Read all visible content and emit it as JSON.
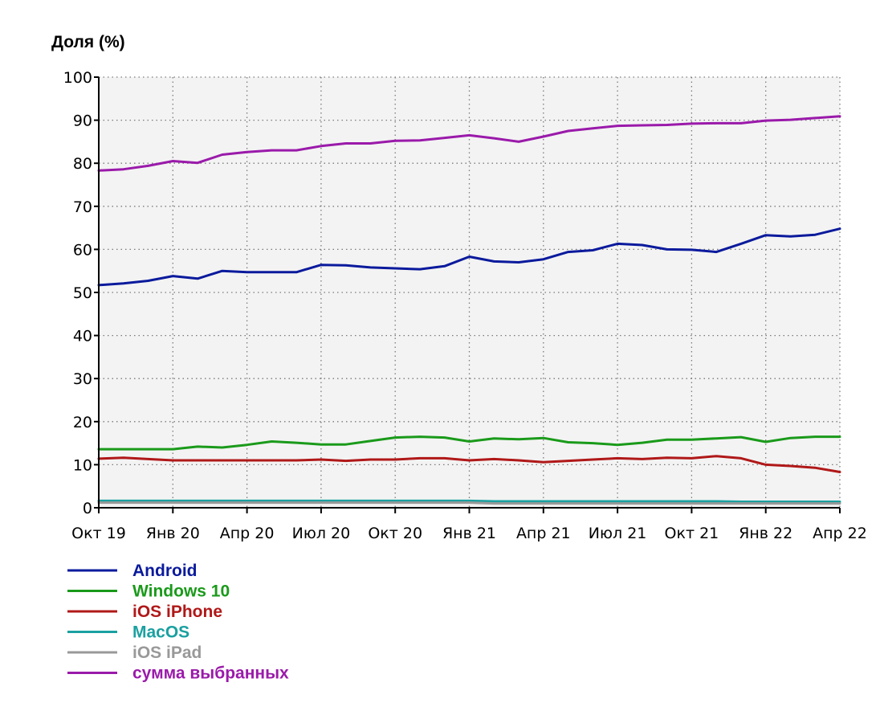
{
  "chart_data": {
    "type": "line",
    "title": "",
    "ylabel": "Доля (%)",
    "xlabel": "",
    "ylim": [
      0,
      100
    ],
    "yticks": [
      0,
      10,
      20,
      30,
      40,
      50,
      60,
      70,
      80,
      90,
      100
    ],
    "xlim": [
      "2019-10",
      "2022-04"
    ],
    "xticks": [
      "Окт 19",
      "Янв 20",
      "Апр 20",
      "Июл 20",
      "Окт 20",
      "Янв 21",
      "Апр 21",
      "Июл 21",
      "Окт 21",
      "Янв 22",
      "Апр 22"
    ],
    "x": [
      "2019-10",
      "2019-11",
      "2019-12",
      "2020-01",
      "2020-02",
      "2020-03",
      "2020-04",
      "2020-05",
      "2020-06",
      "2020-07",
      "2020-08",
      "2020-09",
      "2020-10",
      "2020-11",
      "2020-12",
      "2021-01",
      "2021-02",
      "2021-03",
      "2021-04",
      "2021-05",
      "2021-06",
      "2021-07",
      "2021-08",
      "2021-09",
      "2021-10",
      "2021-11",
      "2021-12",
      "2022-01",
      "2022-02",
      "2022-03",
      "2022-04"
    ],
    "grid": true,
    "legend_position": "bottom-left",
    "series": [
      {
        "name": "Android",
        "color": "#0a1a9c",
        "values": [
          51.7,
          52.1,
          52.7,
          53.8,
          53.2,
          55.0,
          54.7,
          54.7,
          54.7,
          56.4,
          56.3,
          55.8,
          55.6,
          55.4,
          56.1,
          58.3,
          57.2,
          57.0,
          57.7,
          59.4,
          59.8,
          61.3,
          61.0,
          60.0,
          59.9,
          59.4,
          61.3,
          63.3,
          63.0,
          63.4,
          64.8
        ]
      },
      {
        "name": "Windows 10",
        "color": "#1a9a1a",
        "values": [
          13.6,
          13.6,
          13.6,
          13.6,
          14.2,
          14.0,
          14.6,
          15.4,
          15.1,
          14.7,
          14.7,
          15.5,
          16.3,
          16.5,
          16.3,
          15.4,
          16.1,
          15.9,
          16.2,
          15.2,
          15.0,
          14.6,
          15.1,
          15.8,
          15.8,
          16.1,
          16.4,
          15.3,
          16.2,
          16.5,
          16.5
        ]
      },
      {
        "name": "iOS iPhone",
        "color": "#b01818",
        "values": [
          11.4,
          11.6,
          11.3,
          11.0,
          11.0,
          11.0,
          11.0,
          11.0,
          11.0,
          11.2,
          10.9,
          11.2,
          11.2,
          11.5,
          11.5,
          11.0,
          11.3,
          11.0,
          10.6,
          10.9,
          11.2,
          11.5,
          11.3,
          11.6,
          11.5,
          12.0,
          11.5,
          10.0,
          9.7,
          9.3,
          8.3
        ]
      },
      {
        "name": "MacOS",
        "color": "#1aa0a0",
        "values": [
          1.6,
          1.6,
          1.6,
          1.6,
          1.6,
          1.6,
          1.6,
          1.6,
          1.6,
          1.6,
          1.6,
          1.6,
          1.6,
          1.6,
          1.6,
          1.6,
          1.5,
          1.5,
          1.5,
          1.5,
          1.5,
          1.5,
          1.5,
          1.5,
          1.5,
          1.5,
          1.4,
          1.4,
          1.4,
          1.4,
          1.4
        ]
      },
      {
        "name": "iOS iPad",
        "color": "#999999",
        "values": [
          1.2,
          1.2,
          1.2,
          1.2,
          1.2,
          1.2,
          1.2,
          1.2,
          1.2,
          1.2,
          1.2,
          1.2,
          1.2,
          1.2,
          1.2,
          1.2,
          1.0,
          1.0,
          1.0,
          1.0,
          1.0,
          1.0,
          1.0,
          1.0,
          1.0,
          1.0,
          1.0,
          1.0,
          1.0,
          1.0,
          1.0
        ]
      },
      {
        "name": "сумма выбранных",
        "color": "#9a1aaa",
        "values": [
          78.3,
          78.6,
          79.4,
          80.5,
          80.1,
          82.0,
          82.6,
          83.0,
          83.0,
          84.0,
          84.6,
          84.6,
          85.2,
          85.3,
          85.9,
          86.5,
          85.8,
          85.0,
          86.2,
          87.5,
          88.1,
          88.7,
          88.8,
          88.9,
          89.2,
          89.3,
          89.3,
          89.9,
          90.1,
          90.5,
          90.9
        ]
      }
    ]
  }
}
